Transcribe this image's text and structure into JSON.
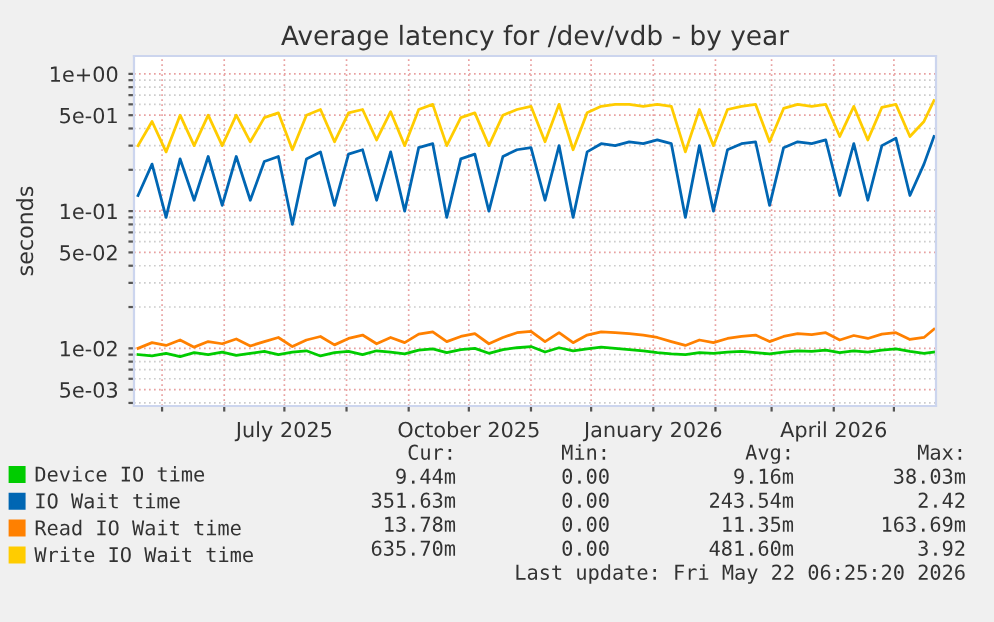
{
  "chart_data": {
    "type": "line",
    "title": "Average latency for /dev/vdb - by year",
    "ylabel": "seconds",
    "log": true,
    "grid": true,
    "legend": "bottom",
    "marker": "none",
    "line_style": "solid",
    "x": [
      "2025-04-19",
      "2025-04-26",
      "2025-05-03",
      "2025-05-10",
      "2025-05-17",
      "2025-05-24",
      "2025-05-31",
      "2025-06-07",
      "2025-06-14",
      "2025-06-21",
      "2025-06-28",
      "2025-07-05",
      "2025-07-12",
      "2025-07-19",
      "2025-07-26",
      "2025-08-02",
      "2025-08-09",
      "2025-08-16",
      "2025-08-23",
      "2025-08-30",
      "2025-09-06",
      "2025-09-13",
      "2025-09-20",
      "2025-09-27",
      "2025-10-04",
      "2025-10-11",
      "2025-10-18",
      "2025-10-25",
      "2025-11-01",
      "2025-11-08",
      "2025-11-15",
      "2025-11-22",
      "2025-11-29",
      "2025-12-06",
      "2025-12-13",
      "2025-12-20",
      "2025-12-27",
      "2026-01-03",
      "2026-01-10",
      "2026-01-17",
      "2026-01-24",
      "2026-01-31",
      "2026-02-07",
      "2026-02-14",
      "2026-02-21",
      "2026-02-28",
      "2026-03-07",
      "2026-03-14",
      "2026-03-21",
      "2026-03-28",
      "2026-04-04",
      "2026-04-11",
      "2026-04-18",
      "2026-04-25",
      "2026-05-02",
      "2026-05-09",
      "2026-05-16",
      "2026-05-21"
    ],
    "series": [
      {
        "name": "Device IO time",
        "color": "#00cc00",
        "values": [
          0.009,
          0.0088,
          0.0092,
          0.0087,
          0.0093,
          0.009,
          0.0094,
          0.0089,
          0.0092,
          0.0095,
          0.009,
          0.0094,
          0.0096,
          0.0088,
          0.0093,
          0.0095,
          0.009,
          0.0096,
          0.0094,
          0.0091,
          0.0097,
          0.0099,
          0.0093,
          0.0098,
          0.01,
          0.0092,
          0.0098,
          0.0101,
          0.0103,
          0.0094,
          0.0101,
          0.0096,
          0.0099,
          0.0102,
          0.01,
          0.0098,
          0.0096,
          0.0093,
          0.0091,
          0.009,
          0.0093,
          0.0092,
          0.0094,
          0.0095,
          0.0093,
          0.0091,
          0.0094,
          0.0096,
          0.0095,
          0.0097,
          0.0093,
          0.0096,
          0.0094,
          0.0097,
          0.0099,
          0.0095,
          0.0092,
          0.0094
        ]
      },
      {
        "name": "IO Wait time",
        "color": "#0066b3",
        "values": [
          0.13,
          0.22,
          0.09,
          0.24,
          0.12,
          0.25,
          0.11,
          0.25,
          0.12,
          0.23,
          0.25,
          0.08,
          0.24,
          0.27,
          0.11,
          0.26,
          0.28,
          0.12,
          0.27,
          0.1,
          0.29,
          0.31,
          0.09,
          0.24,
          0.26,
          0.1,
          0.25,
          0.28,
          0.29,
          0.12,
          0.3,
          0.09,
          0.27,
          0.31,
          0.3,
          0.32,
          0.31,
          0.33,
          0.31,
          0.09,
          0.3,
          0.1,
          0.28,
          0.31,
          0.32,
          0.11,
          0.29,
          0.32,
          0.31,
          0.33,
          0.13,
          0.31,
          0.12,
          0.3,
          0.34,
          0.13,
          0.22,
          0.35
        ]
      },
      {
        "name": "Read IO Wait time",
        "color": "#ff8000",
        "values": [
          0.01,
          0.011,
          0.0105,
          0.0115,
          0.0102,
          0.0112,
          0.0108,
          0.0117,
          0.0104,
          0.0112,
          0.012,
          0.0103,
          0.0115,
          0.0122,
          0.0106,
          0.0118,
          0.0125,
          0.0108,
          0.012,
          0.011,
          0.0127,
          0.0132,
          0.0112,
          0.0122,
          0.0128,
          0.0108,
          0.012,
          0.013,
          0.0133,
          0.0112,
          0.013,
          0.011,
          0.0125,
          0.0132,
          0.013,
          0.0128,
          0.0125,
          0.012,
          0.0112,
          0.0105,
          0.0115,
          0.011,
          0.0118,
          0.0122,
          0.0125,
          0.0112,
          0.0122,
          0.0128,
          0.0126,
          0.013,
          0.0115,
          0.0124,
          0.0118,
          0.0127,
          0.013,
          0.0116,
          0.012,
          0.0138
        ]
      },
      {
        "name": "Write IO Wait time",
        "color": "#ffcc00",
        "values": [
          0.3,
          0.45,
          0.27,
          0.5,
          0.3,
          0.5,
          0.3,
          0.5,
          0.32,
          0.48,
          0.52,
          0.28,
          0.5,
          0.55,
          0.32,
          0.52,
          0.55,
          0.33,
          0.53,
          0.3,
          0.55,
          0.6,
          0.3,
          0.48,
          0.52,
          0.3,
          0.5,
          0.55,
          0.58,
          0.32,
          0.6,
          0.28,
          0.52,
          0.58,
          0.6,
          0.6,
          0.58,
          0.6,
          0.58,
          0.27,
          0.55,
          0.3,
          0.55,
          0.58,
          0.6,
          0.32,
          0.56,
          0.6,
          0.58,
          0.6,
          0.35,
          0.58,
          0.33,
          0.57,
          0.6,
          0.35,
          0.45,
          0.64
        ]
      }
    ],
    "xlim": [
      "2025-04-17",
      "2026-05-22"
    ],
    "xticks": [
      {
        "value": "2025-05-01",
        "label": null
      },
      {
        "value": "2025-06-01",
        "label": null
      },
      {
        "value": "2025-07-01",
        "label": "July 2025"
      },
      {
        "value": "2025-08-01",
        "label": null
      },
      {
        "value": "2025-09-01",
        "label": null
      },
      {
        "value": "2025-10-01",
        "label": "October 2025"
      },
      {
        "value": "2025-11-01",
        "label": null
      },
      {
        "value": "2025-12-01",
        "label": null
      },
      {
        "value": "2026-01-01",
        "label": "January 2026"
      },
      {
        "value": "2026-02-01",
        "label": null
      },
      {
        "value": "2026-03-01",
        "label": null
      },
      {
        "value": "2026-04-01",
        "label": "April 2026"
      },
      {
        "value": "2026-05-01",
        "label": null
      }
    ],
    "ylim": [
      0.0038,
      1.35
    ],
    "yticks": [
      {
        "value": 0.004,
        "label": null
      },
      {
        "value": 0.005,
        "label": "5e-03"
      },
      {
        "value": 0.006,
        "label": null
      },
      {
        "value": 0.007,
        "label": null
      },
      {
        "value": 0.008,
        "label": null
      },
      {
        "value": 0.009,
        "label": null
      },
      {
        "value": 0.01,
        "label": "1e-02"
      },
      {
        "value": 0.02,
        "label": null
      },
      {
        "value": 0.03,
        "label": null
      },
      {
        "value": 0.04,
        "label": null
      },
      {
        "value": 0.05,
        "label": "5e-02"
      },
      {
        "value": 0.06,
        "label": null
      },
      {
        "value": 0.07,
        "label": null
      },
      {
        "value": 0.08,
        "label": null
      },
      {
        "value": 0.09,
        "label": null
      },
      {
        "value": 0.1,
        "label": "1e-01"
      },
      {
        "value": 0.2,
        "label": null
      },
      {
        "value": 0.3,
        "label": null
      },
      {
        "value": 0.4,
        "label": null
      },
      {
        "value": 0.5,
        "label": "5e-01"
      },
      {
        "value": 0.6,
        "label": null
      },
      {
        "value": 0.7,
        "label": null
      },
      {
        "value": 0.8,
        "label": null
      },
      {
        "value": 0.9,
        "label": null
      },
      {
        "value": 1,
        "label": "1e+00"
      }
    ],
    "annotations": [
      "Cur:",
      "Min:",
      "Avg:",
      "Max:",
      "9.44m",
      "0.00",
      "9.16m",
      "38.03m",
      "351.63m",
      "0.00",
      "243.54m",
      "2.42",
      "13.78m",
      "0.00",
      "11.35m",
      "163.69m",
      "635.70m",
      "0.00",
      "481.60m",
      "3.92",
      "Last update: Fri May 22 06:25:20 2026"
    ]
  }
}
